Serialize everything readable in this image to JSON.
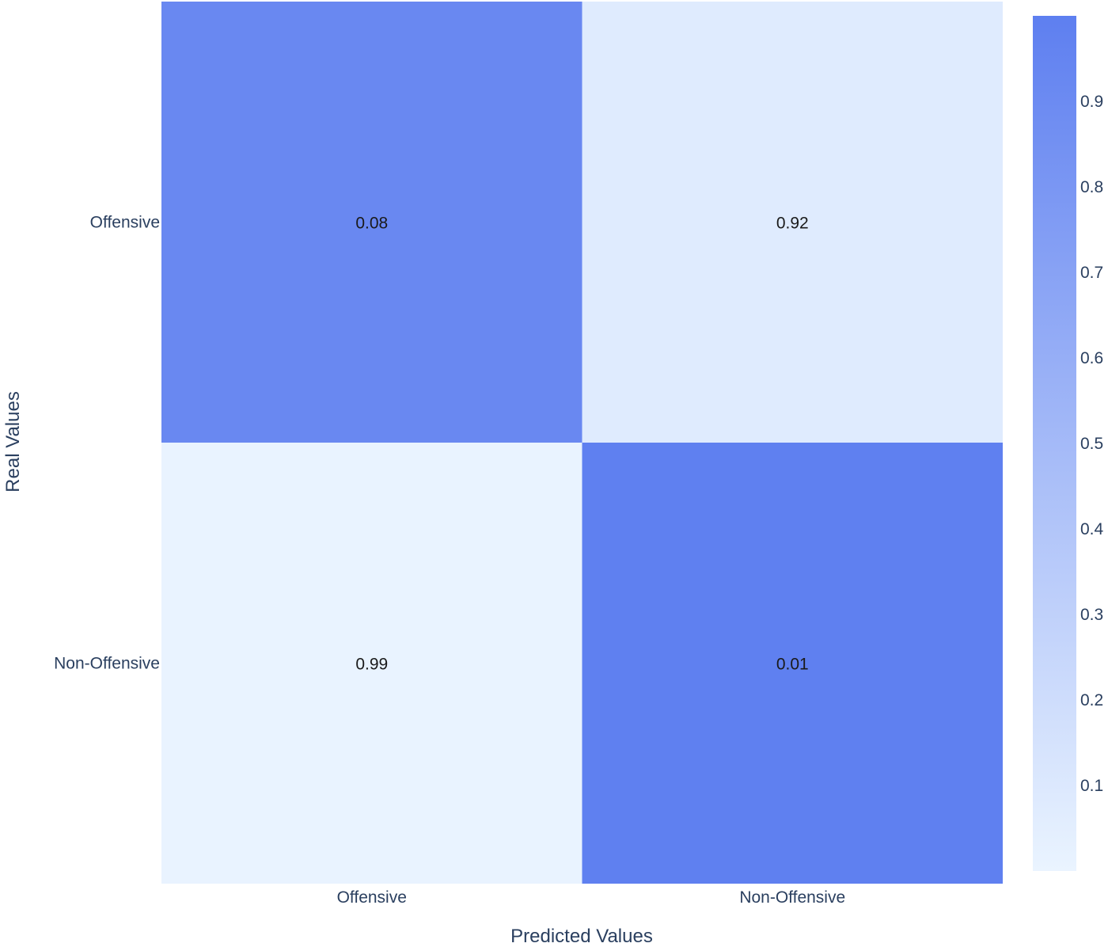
{
  "chart_data": {
    "type": "heatmap",
    "x_categories": [
      "Offensive",
      "Non-Offensive"
    ],
    "y_categories": [
      "Offensive",
      "Non-Offensive"
    ],
    "values": [
      [
        0.08,
        0.92
      ],
      [
        0.99,
        0.01
      ]
    ],
    "cell_labels": [
      [
        "0.08",
        "0.92"
      ],
      [
        "0.99",
        "0.01"
      ]
    ],
    "xlabel": "Predicted Values",
    "ylabel": "Real Values",
    "colorbar": {
      "range": [
        0,
        1
      ],
      "ticks": [
        "0.1",
        "0.2",
        "0.3",
        "0.4",
        "0.5",
        "0.6",
        "0.7",
        "0.8",
        "0.9"
      ],
      "color_low": "#eaf4ff",
      "color_high": "#5e7ff0"
    }
  }
}
